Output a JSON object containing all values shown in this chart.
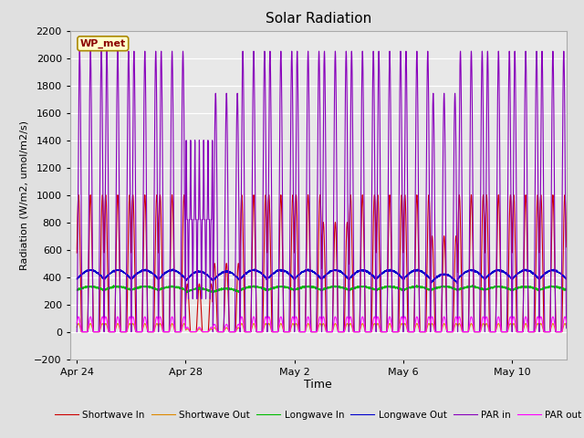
{
  "title": "Solar Radiation",
  "xlabel": "Time",
  "ylabel": "Radiation (W/m2, umol/m2/s)",
  "ylim": [
    -200,
    2200
  ],
  "yticks": [
    -200,
    0,
    200,
    400,
    600,
    800,
    1000,
    1200,
    1400,
    1600,
    1800,
    2000,
    2200
  ],
  "fig_bg_color": "#e0e0e0",
  "axes_bg_color": "#e8e8e8",
  "station_label": "WP_met",
  "legend_entries": [
    "Shortwave In",
    "Shortwave Out",
    "Longwave In",
    "Longwave Out",
    "PAR in",
    "PAR out"
  ],
  "line_colors": [
    "#cc0000",
    "#dd8800",
    "#00bb00",
    "#0000cc",
    "#8800bb",
    "#ff00ff"
  ],
  "n_days": 18,
  "shortwave_in_peak": 1000,
  "shortwave_out_peak": 60,
  "longwave_in_base": 305,
  "longwave_in_amp": 25,
  "longwave_out_base": 385,
  "longwave_out_amp": 65,
  "par_in_peak": 2050,
  "par_out_peak": 110,
  "points_per_day": 288
}
